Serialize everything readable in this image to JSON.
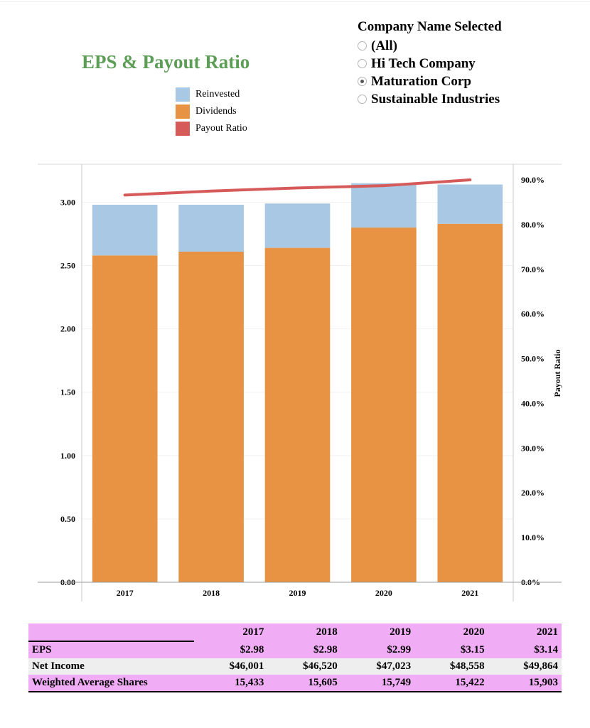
{
  "title": "EPS & Payout Ratio",
  "legend": [
    {
      "label": "Reinvested",
      "color": "#a8c8e3"
    },
    {
      "label": "Dividends",
      "color": "#e79343"
    },
    {
      "label": "Payout Ratio",
      "color": "#d65a5a"
    }
  ],
  "filter": {
    "title": "Company Name Selected",
    "options": [
      {
        "label": "(All)",
        "selected": false
      },
      {
        "label": "Hi Tech Company",
        "selected": false
      },
      {
        "label": "Maturation Corp",
        "selected": true
      },
      {
        "label": "Sustainable Industries",
        "selected": false
      }
    ]
  },
  "chart_data": {
    "type": "bar",
    "stacked": true,
    "categories": [
      "2017",
      "2018",
      "2019",
      "2020",
      "2021"
    ],
    "series": [
      {
        "name": "Dividends",
        "color": "#e79343",
        "values": [
          2.58,
          2.61,
          2.64,
          2.8,
          2.83
        ]
      },
      {
        "name": "Reinvested",
        "color": "#a8c8e3",
        "values": [
          0.4,
          0.37,
          0.35,
          0.35,
          0.31
        ]
      }
    ],
    "line_series": {
      "name": "Payout Ratio",
      "color": "#d65a5a",
      "axis": "right",
      "values": [
        86.6,
        87.5,
        88.2,
        88.7,
        90.0
      ]
    },
    "ylim": [
      0,
      3.3
    ],
    "yticks": [
      0,
      0.5,
      1.0,
      1.5,
      2.0,
      2.5,
      3.0
    ],
    "ytick_labels": [
      "0.00",
      "0.50",
      "1.00",
      "1.50",
      "2.00",
      "2.50",
      "3.00"
    ],
    "y2lim": [
      0,
      93.5
    ],
    "y2ticks": [
      0,
      10,
      20,
      30,
      40,
      50,
      60,
      70,
      80,
      90
    ],
    "y2tick_labels": [
      "0.0%",
      "10.0%",
      "20.0%",
      "30.0%",
      "40.0%",
      "50.0%",
      "60.0%",
      "70.0%",
      "80.0%",
      "90.0%"
    ],
    "y2label": "Payout Ratio",
    "xlabel": "",
    "ylabel": ""
  },
  "table": {
    "columns": [
      "",
      "2017",
      "2018",
      "2019",
      "2020",
      "2021"
    ],
    "rows": [
      {
        "label": "EPS",
        "values": [
          "$2.98",
          "$2.98",
          "$2.99",
          "$3.15",
          "$3.14"
        ]
      },
      {
        "label": "Net Income",
        "values": [
          "$46,001",
          "$46,520",
          "$47,023",
          "$48,558",
          "$49,864"
        ]
      },
      {
        "label": "Weighted Average Shares",
        "values": [
          "15,433",
          "15,605",
          "15,749",
          "15,422",
          "15,903"
        ]
      }
    ]
  }
}
